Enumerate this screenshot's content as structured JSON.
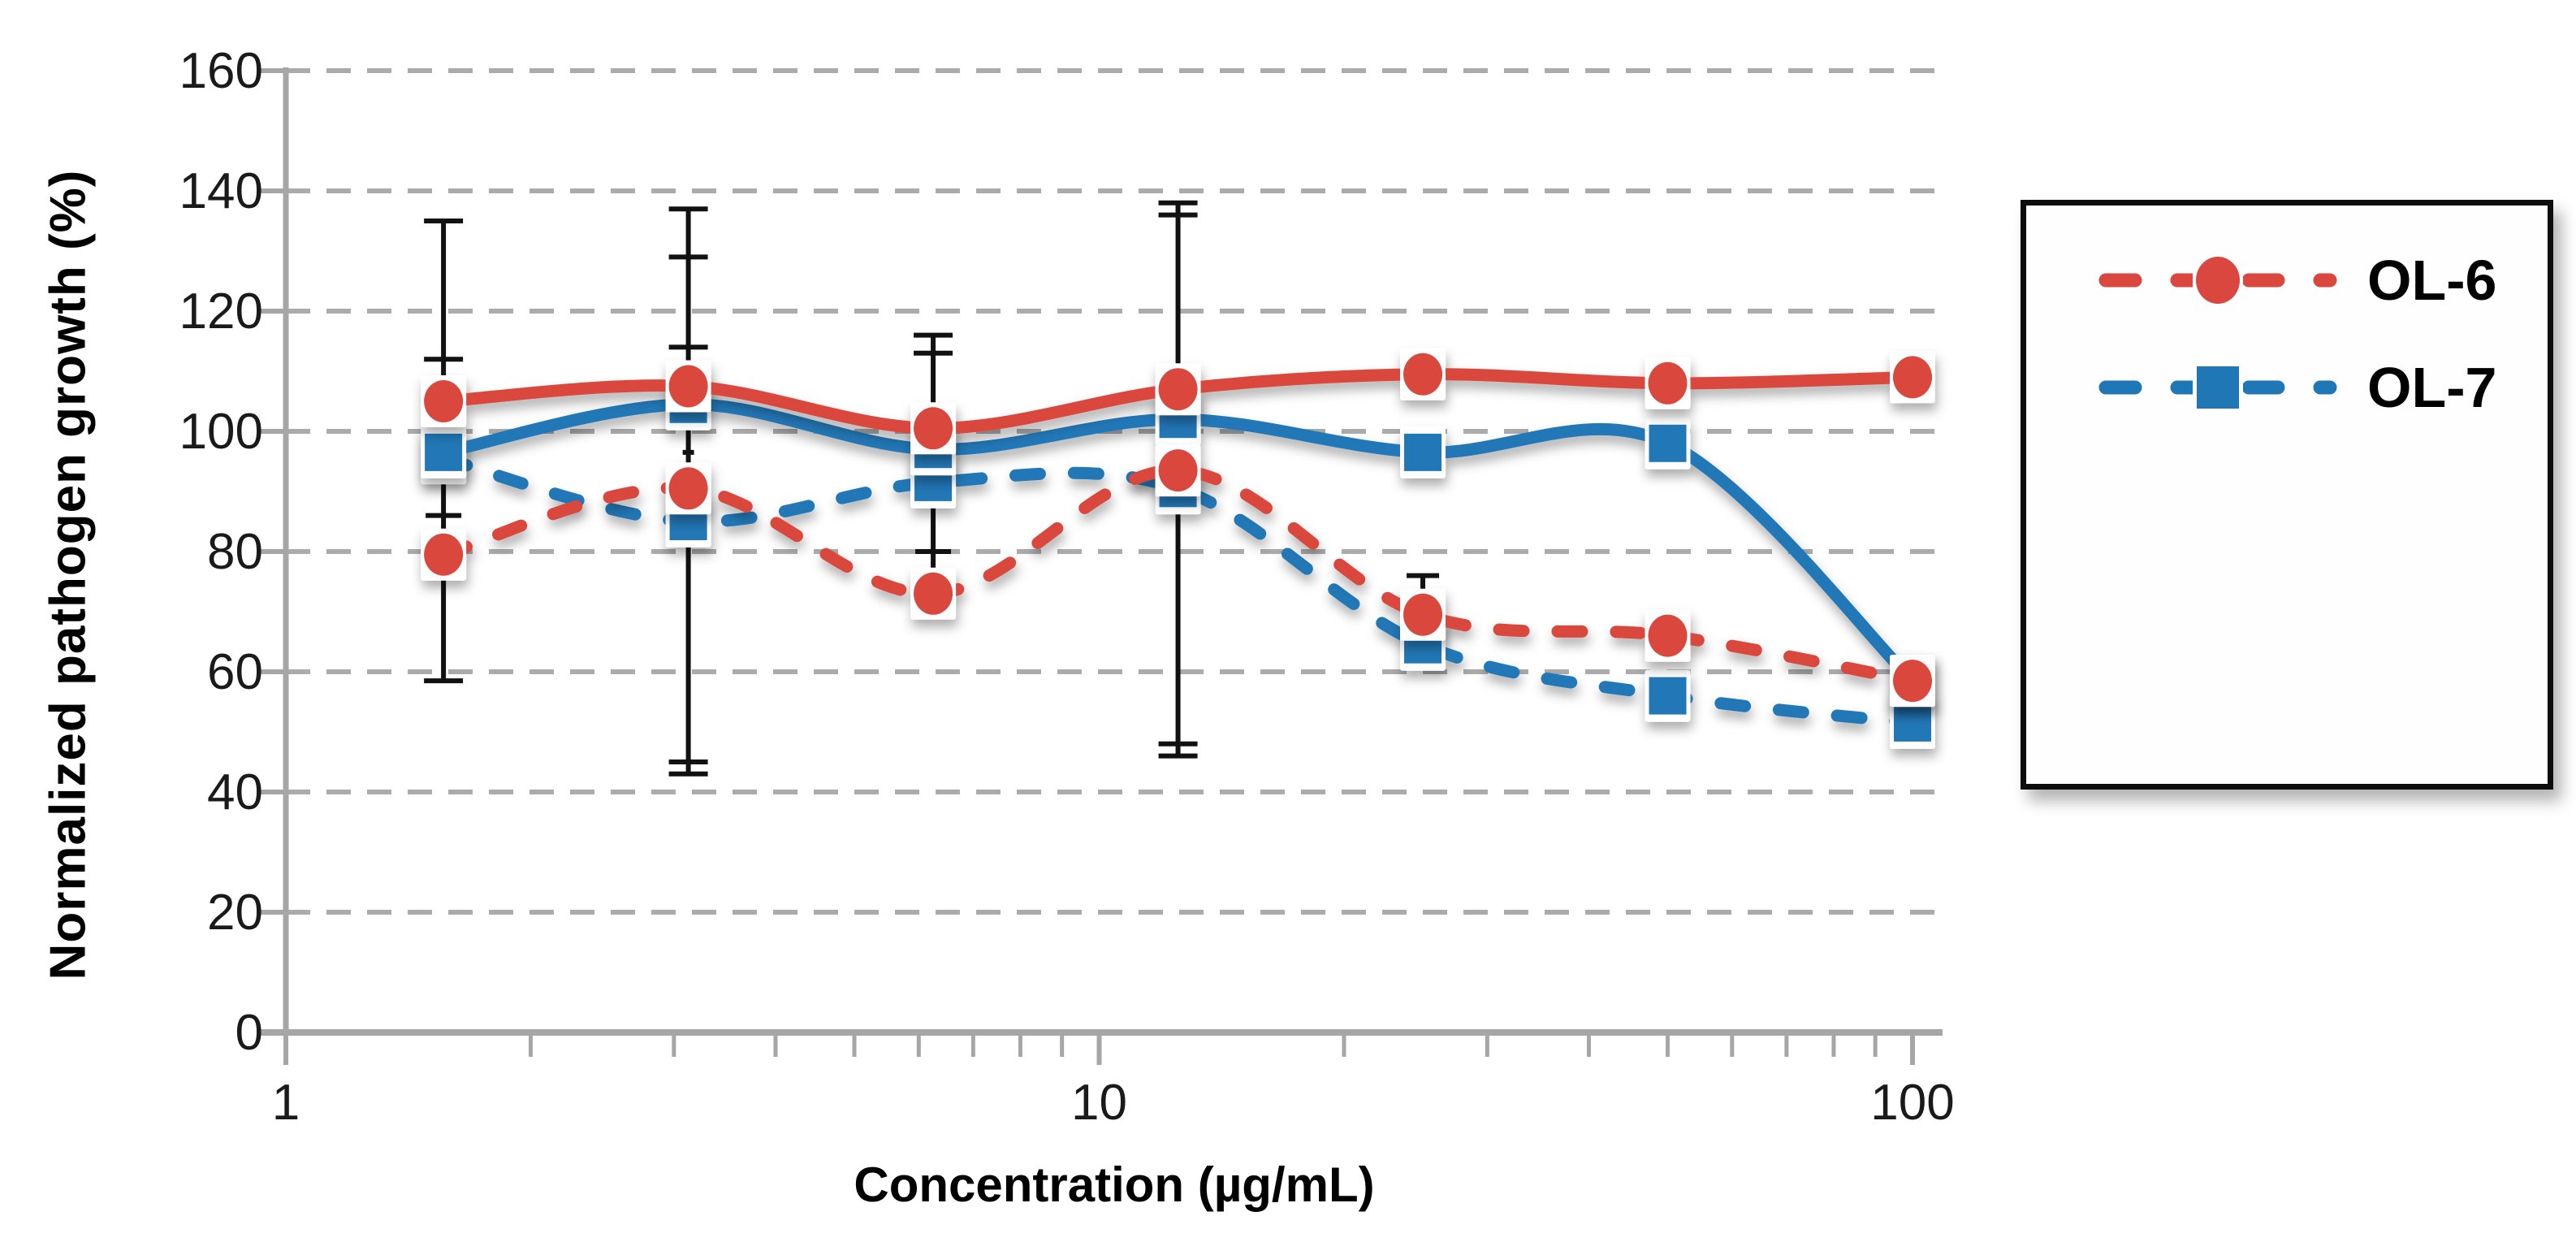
{
  "axes": {
    "x_title": "Concentration (µg/mL)",
    "y_title": "Normalized pathogen growth (%)",
    "x_tick_labels": [
      "1",
      "10",
      "100"
    ],
    "y_tick_labels": [
      "0",
      "20",
      "40",
      "60",
      "80",
      "100",
      "120",
      "140",
      "160"
    ]
  },
  "legend": {
    "items": [
      {
        "label": "OL-6",
        "color": "#D9473E",
        "marker": "circle"
      },
      {
        "label": "OL-7",
        "color": "#2077B6",
        "marker": "square"
      }
    ]
  },
  "chart_data": {
    "type": "line",
    "x_scale": "log",
    "x": [
      1.5625,
      3.125,
      6.25,
      12.5,
      25,
      50,
      100
    ],
    "xlim": [
      1,
      100
    ],
    "ylim": [
      0,
      160
    ],
    "y_ticks": [
      0,
      20,
      40,
      60,
      80,
      100,
      120,
      140,
      160
    ],
    "x_minor_ticks": [
      2,
      3,
      4,
      5,
      6,
      7,
      8,
      9,
      20,
      30,
      40,
      50,
      60,
      70,
      80,
      90
    ],
    "xlabel": "Concentration (µg/mL)",
    "ylabel": "Normalized pathogen growth (%)",
    "grid": "horizontal-dashed",
    "legend_position": "outside-right-box",
    "series": [
      {
        "name": "OL-7",
        "in_legend": true,
        "color": "#2077B6",
        "line_style": "dashed",
        "marker": "square",
        "values": [
          95.5,
          85,
          91.5,
          90.5,
          64.5,
          56,
          51.5
        ]
      },
      {
        "name": "unlabeled-blue-solid",
        "in_legend": false,
        "color": "#2077B6",
        "line_style": "solid",
        "marker": "square",
        "values": [
          96.5,
          104.5,
          97,
          102,
          96.5,
          98,
          58.5
        ]
      },
      {
        "name": "OL-6",
        "in_legend": true,
        "color": "#D9473E",
        "line_style": "dashed",
        "marker": "circle",
        "values": [
          79.5,
          90.5,
          73,
          93.5,
          69.5,
          66,
          58.5
        ]
      },
      {
        "name": "unlabeled-red-solid",
        "in_legend": false,
        "color": "#D9473E",
        "line_style": "solid",
        "marker": "circle",
        "values": [
          105,
          107.5,
          100.5,
          107,
          109.5,
          108,
          109
        ]
      }
    ],
    "error_bars": [
      {
        "x": 1.5625,
        "span": [
          58.5,
          135
        ],
        "caps": [
          {
            "v": 135,
            "w": 48
          },
          {
            "v": 112,
            "w": 48
          },
          {
            "v": 86,
            "w": 44
          },
          {
            "v": 58.5,
            "w": 48
          }
        ]
      },
      {
        "x": 3.125,
        "span": [
          43,
          137
        ],
        "caps": [
          {
            "v": 137,
            "w": 48
          },
          {
            "v": 129,
            "w": 48
          },
          {
            "v": 114,
            "w": 48
          },
          {
            "v": 96.5,
            "w": 14
          },
          {
            "v": 45,
            "w": 48
          },
          {
            "v": 43,
            "w": 48
          }
        ]
      },
      {
        "x": 6.25,
        "span": [
          73,
          116
        ],
        "caps": [
          {
            "v": 116,
            "w": 48
          },
          {
            "v": 113,
            "w": 48
          },
          {
            "v": 80,
            "w": 44
          }
        ]
      },
      {
        "x": 12.5,
        "span": [
          46,
          138
        ],
        "caps": [
          {
            "v": 138,
            "w": 48
          },
          {
            "v": 136,
            "w": 48
          },
          {
            "v": 48,
            "w": 48
          },
          {
            "v": 46,
            "w": 48
          }
        ]
      },
      {
        "x": 25,
        "span": [
          69.5,
          76
        ],
        "caps": [
          {
            "v": 76,
            "w": 40
          }
        ]
      }
    ],
    "colors": {
      "grid": "#ABABAB",
      "axis": "#A6A6A6",
      "error_bar": "#111111",
      "tick_text": "#1A1A1A",
      "red_series": "#D9473E",
      "blue_series": "#2077B6"
    }
  }
}
